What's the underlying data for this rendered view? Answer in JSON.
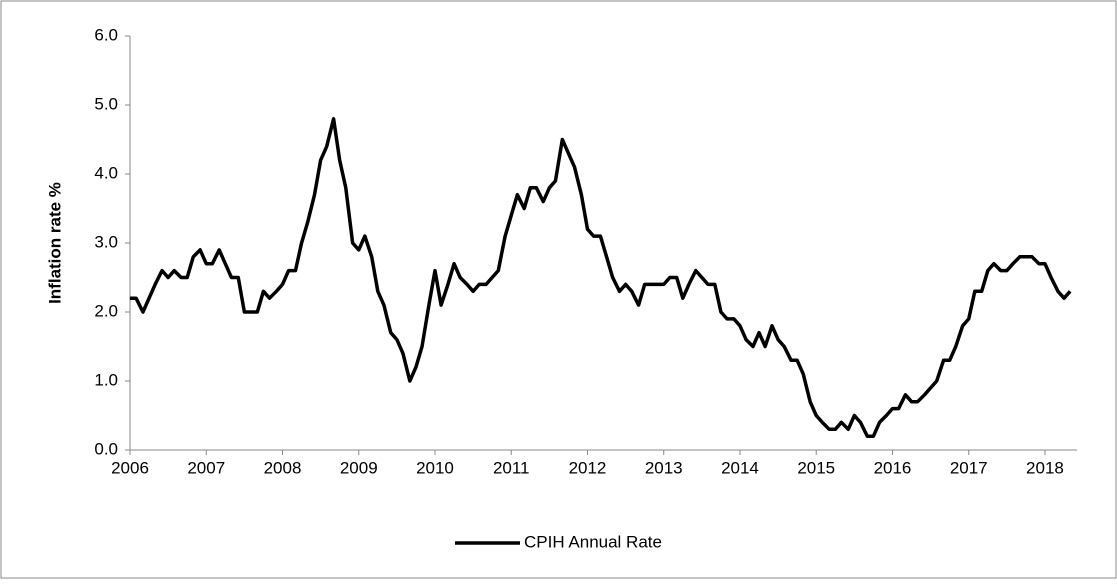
{
  "chart_data": {
    "type": "line",
    "y_label": "Inflation rate %",
    "x": [
      2006,
      2006.08,
      2006.17,
      2006.25,
      2006.33,
      2006.42,
      2006.5,
      2006.58,
      2006.67,
      2006.75,
      2006.83,
      2006.92,
      2007,
      2007.08,
      2007.17,
      2007.25,
      2007.33,
      2007.42,
      2007.5,
      2007.58,
      2007.67,
      2007.75,
      2007.83,
      2007.92,
      2008,
      2008.08,
      2008.17,
      2008.25,
      2008.33,
      2008.42,
      2008.5,
      2008.58,
      2008.67,
      2008.75,
      2008.83,
      2008.92,
      2009,
      2009.08,
      2009.17,
      2009.25,
      2009.33,
      2009.42,
      2009.5,
      2009.58,
      2009.67,
      2009.75,
      2009.83,
      2009.92,
      2010,
      2010.08,
      2010.17,
      2010.25,
      2010.33,
      2010.42,
      2010.5,
      2010.58,
      2010.67,
      2010.75,
      2010.83,
      2010.92,
      2011,
      2011.08,
      2011.17,
      2011.25,
      2011.33,
      2011.42,
      2011.5,
      2011.58,
      2011.67,
      2011.75,
      2011.83,
      2011.92,
      2012,
      2012.08,
      2012.17,
      2012.25,
      2012.33,
      2012.42,
      2012.5,
      2012.58,
      2012.67,
      2012.75,
      2012.83,
      2012.92,
      2013,
      2013.08,
      2013.17,
      2013.25,
      2013.33,
      2013.42,
      2013.5,
      2013.58,
      2013.67,
      2013.75,
      2013.83,
      2013.92,
      2014,
      2014.08,
      2014.17,
      2014.25,
      2014.33,
      2014.42,
      2014.5,
      2014.58,
      2014.67,
      2014.75,
      2014.83,
      2014.92,
      2015,
      2015.08,
      2015.17,
      2015.25,
      2015.33,
      2015.42,
      2015.5,
      2015.58,
      2015.67,
      2015.75,
      2015.83,
      2015.92,
      2016,
      2016.08,
      2016.17,
      2016.25,
      2016.33,
      2016.42,
      2016.5,
      2016.58,
      2016.67,
      2016.75,
      2016.83,
      2016.92,
      2017,
      2017.08,
      2017.17,
      2017.25,
      2017.33,
      2017.42,
      2017.5,
      2017.58,
      2017.67,
      2017.75,
      2017.83,
      2017.92,
      2018,
      2018.08,
      2018.17,
      2018.25,
      2018.33
    ],
    "series": [
      {
        "name": "CPIH Annual Rate",
        "color": "#000000",
        "values": [
          2.2,
          2.2,
          2.0,
          2.2,
          2.4,
          2.6,
          2.5,
          2.6,
          2.5,
          2.5,
          2.8,
          2.9,
          2.7,
          2.7,
          2.9,
          2.7,
          2.5,
          2.5,
          2.0,
          2.0,
          2.0,
          2.3,
          2.2,
          2.3,
          2.4,
          2.6,
          2.6,
          3.0,
          3.3,
          3.7,
          4.2,
          4.4,
          4.8,
          4.2,
          3.8,
          3.0,
          2.9,
          3.1,
          2.8,
          2.3,
          2.1,
          1.7,
          1.6,
          1.4,
          1.0,
          1.2,
          1.5,
          2.1,
          2.6,
          2.1,
          2.4,
          2.7,
          2.5,
          2.4,
          2.3,
          2.4,
          2.4,
          2.5,
          2.6,
          3.1,
          3.4,
          3.7,
          3.5,
          3.8,
          3.8,
          3.6,
          3.8,
          3.9,
          4.5,
          4.3,
          4.1,
          3.7,
          3.2,
          3.1,
          3.1,
          2.8,
          2.5,
          2.3,
          2.4,
          2.3,
          2.1,
          2.4,
          2.4,
          2.4,
          2.4,
          2.5,
          2.5,
          2.2,
          2.4,
          2.6,
          2.5,
          2.4,
          2.4,
          2.0,
          1.9,
          1.9,
          1.8,
          1.6,
          1.5,
          1.7,
          1.5,
          1.8,
          1.6,
          1.5,
          1.3,
          1.3,
          1.1,
          0.7,
          0.5,
          0.4,
          0.3,
          0.3,
          0.4,
          0.3,
          0.5,
          0.4,
          0.2,
          0.2,
          0.4,
          0.5,
          0.6,
          0.6,
          0.8,
          0.7,
          0.7,
          0.8,
          0.9,
          1.0,
          1.3,
          1.3,
          1.5,
          1.8,
          1.9,
          2.3,
          2.3,
          2.6,
          2.7,
          2.6,
          2.6,
          2.7,
          2.8,
          2.8,
          2.8,
          2.7,
          2.7,
          2.5,
          2.3,
          2.2,
          2.3
        ]
      }
    ],
    "xlim": [
      2006,
      2018.42
    ],
    "xticks": [
      2006,
      2007,
      2008,
      2009,
      2010,
      2011,
      2012,
      2013,
      2014,
      2015,
      2016,
      2017,
      2018
    ],
    "ylim": [
      0,
      6
    ],
    "yticks": [
      {
        "value": 0,
        "label": "0.0"
      },
      {
        "value": 1,
        "label": "1.0"
      },
      {
        "value": 2,
        "label": "2.0"
      },
      {
        "value": 3,
        "label": "3.0"
      },
      {
        "value": 4,
        "label": "4.0"
      },
      {
        "value": 5,
        "label": "5.0"
      },
      {
        "value": 6,
        "label": "6.0"
      }
    ],
    "grid": false
  }
}
